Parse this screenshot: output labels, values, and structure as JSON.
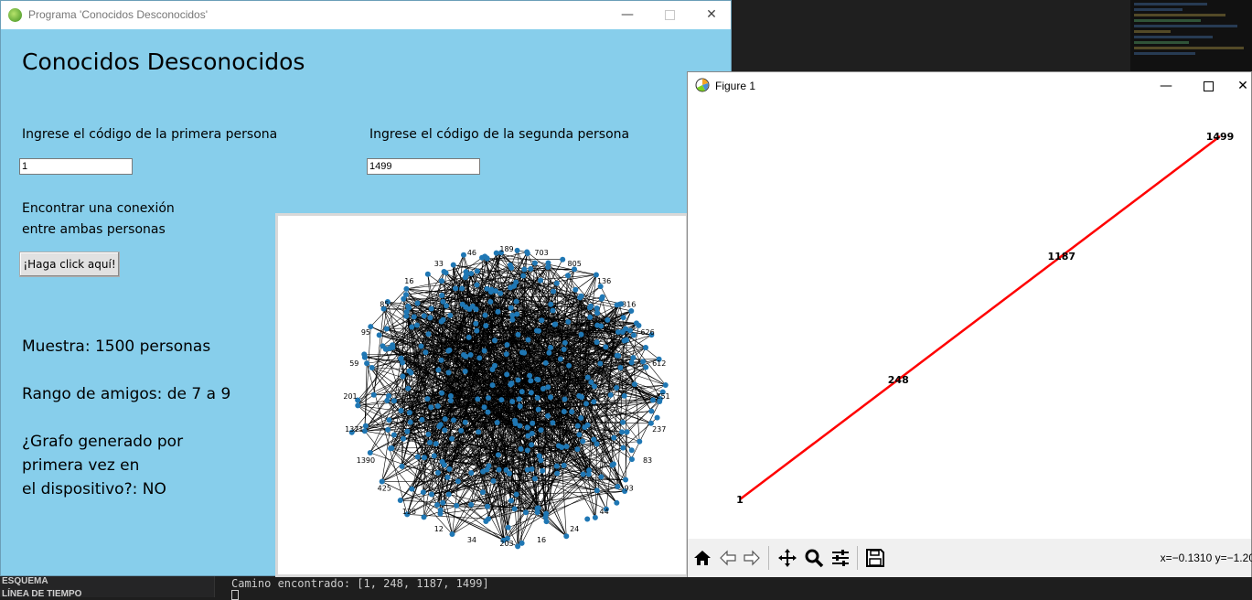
{
  "tk_window": {
    "title": "Programa 'Conocidos Desconocidos'",
    "heading": "Conocidos Desconocidos",
    "label_first": "Ingrese el código de la primera persona",
    "label_second": "Ingrese el código de la segunda persona",
    "first_value": "1",
    "second_value": "1499",
    "connection_label_line1": "Encontrar una conexión",
    "connection_label_line2": "entre ambas personas",
    "button_label": "¡Haga click aquí!",
    "sample": "Muestra: 1500 personas",
    "friends_range": "Rango de amigos: de 7 a 9",
    "first_time_line1": "¿Grafo generado por",
    "first_time_line2": "primera vez en",
    "first_time_line3": "el dispositivo?: NO",
    "bg_color": "#87ceeb",
    "graph_node_labels": [
      "189",
      "703",
      "805",
      "136",
      "316",
      "626",
      "612",
      "251",
      "237",
      "83",
      "93",
      "44",
      "24",
      "16",
      "203",
      "34",
      "12",
      "126",
      "425",
      "1390",
      "1371",
      "201",
      "59",
      "95",
      "85",
      "16",
      "33",
      "46"
    ]
  },
  "figure_window": {
    "title": "Figure 1",
    "path_color": "#ff0000",
    "coords": "x=−0.1310  y=−1.20",
    "toolbar_icons": [
      "home-icon",
      "back-icon",
      "forward-icon",
      "pan-icon",
      "zoom-icon",
      "configure-icon",
      "save-icon"
    ]
  },
  "chart_data": {
    "type": "line",
    "title": "",
    "xlabel": "",
    "ylabel": "",
    "nodes": [
      {
        "label": "1",
        "x": 0.0,
        "y": 0.0
      },
      {
        "label": "248",
        "x": 0.33,
        "y": 0.33
      },
      {
        "label": "1187",
        "x": 0.67,
        "y": 0.67
      },
      {
        "label": "1499",
        "x": 1.0,
        "y": 1.0
      }
    ],
    "grid": false
  },
  "editor": {
    "panel_label": "ESQUEMA",
    "panel_label2": "LÍNEA DE TIEMPO",
    "terminal_output": "Camino encontrado: [1, 248, 1187, 1499]"
  }
}
